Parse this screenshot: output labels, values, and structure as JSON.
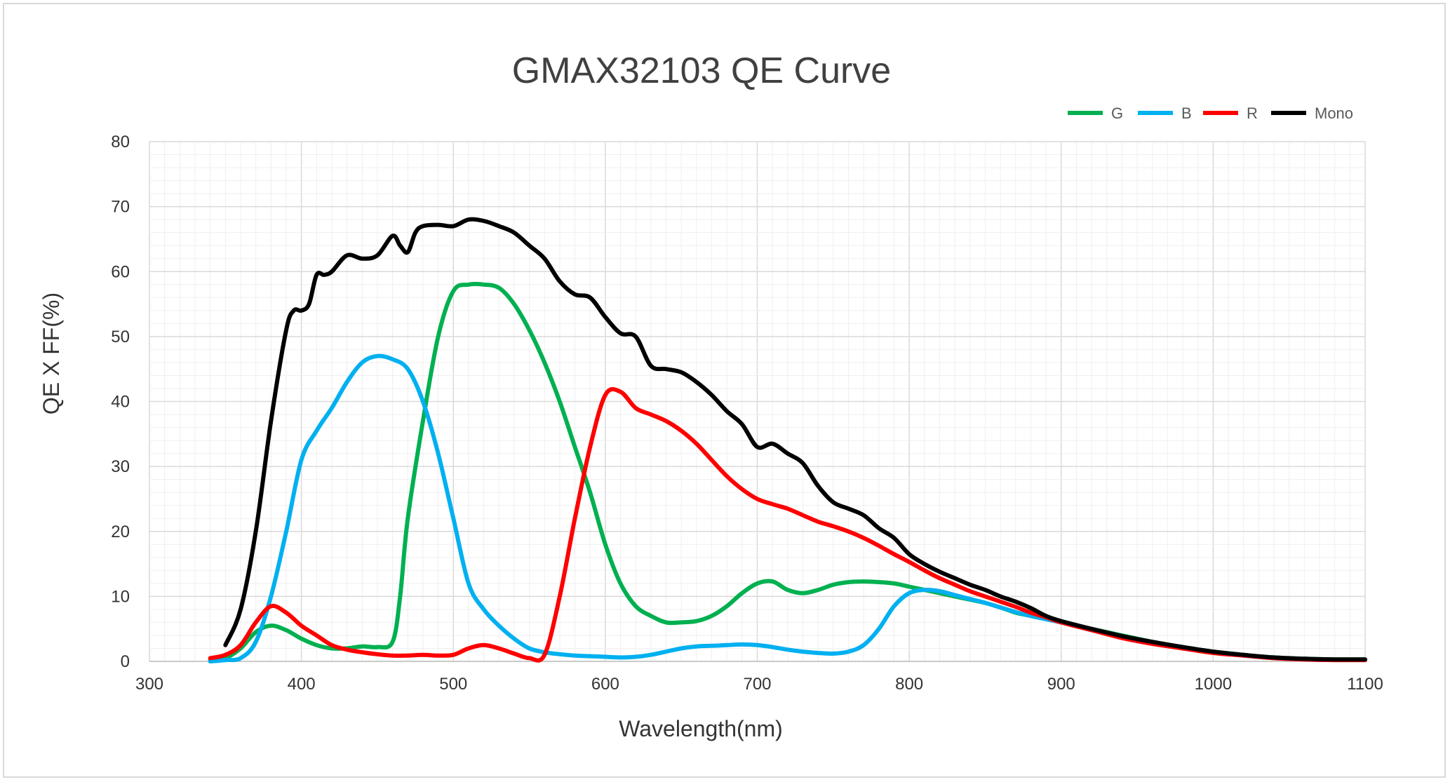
{
  "chart_data": {
    "type": "line",
    "title": "GMAX32103 QE  Curve",
    "xlabel": "Wavelength(nm)",
    "ylabel": "QE X FF(%)",
    "xlim": [
      300,
      1100
    ],
    "ylim": [
      0,
      80
    ],
    "x_ticks": [
      300,
      400,
      500,
      600,
      700,
      800,
      900,
      1000,
      1100
    ],
    "y_ticks": [
      0,
      10,
      20,
      30,
      40,
      50,
      60,
      70,
      80
    ],
    "grid": true,
    "legend_position": "top-right",
    "series": [
      {
        "name": "G",
        "color": "#00b050",
        "points": [
          [
            340,
            0.2
          ],
          [
            350,
            0.5
          ],
          [
            360,
            2
          ],
          [
            370,
            4.5
          ],
          [
            380,
            5.5
          ],
          [
            390,
            4.8
          ],
          [
            400,
            3.5
          ],
          [
            410,
            2.5
          ],
          [
            420,
            2
          ],
          [
            430,
            2
          ],
          [
            440,
            2.3
          ],
          [
            450,
            2.2
          ],
          [
            460,
            3
          ],
          [
            465,
            10
          ],
          [
            470,
            22
          ],
          [
            480,
            37
          ],
          [
            490,
            50
          ],
          [
            500,
            57
          ],
          [
            510,
            58
          ],
          [
            520,
            58
          ],
          [
            530,
            57.5
          ],
          [
            540,
            55
          ],
          [
            550,
            51
          ],
          [
            560,
            46
          ],
          [
            570,
            40
          ],
          [
            580,
            33
          ],
          [
            590,
            26
          ],
          [
            600,
            18
          ],
          [
            610,
            12
          ],
          [
            620,
            8.5
          ],
          [
            630,
            7
          ],
          [
            640,
            6
          ],
          [
            650,
            6
          ],
          [
            660,
            6.2
          ],
          [
            670,
            7
          ],
          [
            680,
            8.5
          ],
          [
            690,
            10.5
          ],
          [
            700,
            12
          ],
          [
            710,
            12.3
          ],
          [
            720,
            11
          ],
          [
            730,
            10.5
          ],
          [
            740,
            11
          ],
          [
            750,
            11.8
          ],
          [
            760,
            12.2
          ],
          [
            770,
            12.3
          ],
          [
            780,
            12.2
          ],
          [
            790,
            12
          ],
          [
            800,
            11.5
          ],
          [
            810,
            11
          ],
          [
            820,
            10.5
          ],
          [
            830,
            10
          ],
          [
            840,
            9.5
          ],
          [
            850,
            9
          ],
          [
            860,
            8.3
          ],
          [
            870,
            7.5
          ],
          [
            880,
            7
          ],
          [
            890,
            6.5
          ],
          [
            900,
            6
          ],
          [
            920,
            5
          ],
          [
            940,
            4
          ],
          [
            960,
            3
          ],
          [
            980,
            2.2
          ],
          [
            1000,
            1.5
          ],
          [
            1020,
            1
          ],
          [
            1040,
            0.6
          ],
          [
            1060,
            0.4
          ],
          [
            1080,
            0.3
          ],
          [
            1100,
            0.3
          ]
        ]
      },
      {
        "name": "B",
        "color": "#00b0f0",
        "points": [
          [
            340,
            0
          ],
          [
            350,
            0.2
          ],
          [
            360,
            0.5
          ],
          [
            370,
            3
          ],
          [
            380,
            10
          ],
          [
            390,
            20
          ],
          [
            400,
            31
          ],
          [
            410,
            35.5
          ],
          [
            420,
            39
          ],
          [
            430,
            43
          ],
          [
            440,
            46
          ],
          [
            450,
            47
          ],
          [
            460,
            46.5
          ],
          [
            470,
            45
          ],
          [
            480,
            40
          ],
          [
            490,
            32
          ],
          [
            500,
            22
          ],
          [
            510,
            12
          ],
          [
            520,
            8
          ],
          [
            530,
            5.5
          ],
          [
            540,
            3.5
          ],
          [
            550,
            2
          ],
          [
            560,
            1.4
          ],
          [
            570,
            1.1
          ],
          [
            580,
            0.9
          ],
          [
            590,
            0.8
          ],
          [
            600,
            0.7
          ],
          [
            610,
            0.6
          ],
          [
            620,
            0.7
          ],
          [
            630,
            1
          ],
          [
            640,
            1.5
          ],
          [
            650,
            2
          ],
          [
            660,
            2.3
          ],
          [
            670,
            2.4
          ],
          [
            680,
            2.5
          ],
          [
            690,
            2.6
          ],
          [
            700,
            2.5
          ],
          [
            710,
            2.2
          ],
          [
            720,
            1.8
          ],
          [
            730,
            1.5
          ],
          [
            740,
            1.3
          ],
          [
            750,
            1.2
          ],
          [
            760,
            1.5
          ],
          [
            770,
            2.5
          ],
          [
            780,
            5
          ],
          [
            790,
            8.5
          ],
          [
            800,
            10.5
          ],
          [
            810,
            11
          ],
          [
            820,
            10.8
          ],
          [
            830,
            10.2
          ],
          [
            840,
            9.6
          ],
          [
            850,
            9
          ],
          [
            860,
            8.3
          ],
          [
            870,
            7.6
          ],
          [
            880,
            7
          ],
          [
            890,
            6.5
          ],
          [
            900,
            6
          ],
          [
            920,
            4.8
          ],
          [
            940,
            3.8
          ],
          [
            960,
            2.8
          ],
          [
            980,
            2
          ],
          [
            1000,
            1.4
          ],
          [
            1020,
            0.9
          ],
          [
            1040,
            0.5
          ],
          [
            1060,
            0.3
          ],
          [
            1080,
            0.2
          ],
          [
            1100,
            0.2
          ]
        ]
      },
      {
        "name": "R",
        "color": "#ff0000",
        "points": [
          [
            340,
            0.5
          ],
          [
            350,
            1
          ],
          [
            360,
            2.5
          ],
          [
            370,
            6
          ],
          [
            380,
            8.5
          ],
          [
            390,
            7.5
          ],
          [
            400,
            5.5
          ],
          [
            410,
            4
          ],
          [
            420,
            2.5
          ],
          [
            430,
            1.8
          ],
          [
            440,
            1.4
          ],
          [
            450,
            1.1
          ],
          [
            460,
            0.9
          ],
          [
            470,
            0.9
          ],
          [
            480,
            1
          ],
          [
            490,
            0.9
          ],
          [
            500,
            1
          ],
          [
            510,
            2
          ],
          [
            520,
            2.5
          ],
          [
            530,
            2
          ],
          [
            540,
            1.2
          ],
          [
            550,
            0.5
          ],
          [
            560,
            1
          ],
          [
            570,
            10
          ],
          [
            580,
            22
          ],
          [
            590,
            33
          ],
          [
            600,
            41
          ],
          [
            610,
            41.5
          ],
          [
            620,
            39
          ],
          [
            630,
            38
          ],
          [
            640,
            37
          ],
          [
            650,
            35.5
          ],
          [
            660,
            33.5
          ],
          [
            670,
            31
          ],
          [
            680,
            28.5
          ],
          [
            690,
            26.5
          ],
          [
            700,
            25
          ],
          [
            710,
            24.2
          ],
          [
            720,
            23.5
          ],
          [
            730,
            22.5
          ],
          [
            740,
            21.5
          ],
          [
            750,
            20.8
          ],
          [
            760,
            20
          ],
          [
            770,
            19
          ],
          [
            780,
            17.8
          ],
          [
            790,
            16.5
          ],
          [
            800,
            15.3
          ],
          [
            810,
            14
          ],
          [
            820,
            12.8
          ],
          [
            830,
            11.8
          ],
          [
            840,
            10.8
          ],
          [
            850,
            10
          ],
          [
            860,
            9.2
          ],
          [
            870,
            8.4
          ],
          [
            880,
            7.5
          ],
          [
            890,
            6.8
          ],
          [
            900,
            6
          ],
          [
            920,
            4.8
          ],
          [
            940,
            3.6
          ],
          [
            960,
            2.7
          ],
          [
            980,
            2
          ],
          [
            1000,
            1.3
          ],
          [
            1020,
            0.9
          ],
          [
            1040,
            0.5
          ],
          [
            1060,
            0.3
          ],
          [
            1080,
            0.2
          ],
          [
            1100,
            0.2
          ]
        ]
      },
      {
        "name": "Mono",
        "color": "#000000",
        "points": [
          [
            350,
            2.5
          ],
          [
            360,
            8
          ],
          [
            370,
            20
          ],
          [
            380,
            37
          ],
          [
            390,
            51
          ],
          [
            395,
            54
          ],
          [
            400,
            54
          ],
          [
            405,
            55
          ],
          [
            410,
            59.5
          ],
          [
            415,
            59.5
          ],
          [
            420,
            60
          ],
          [
            430,
            62.5
          ],
          [
            440,
            62
          ],
          [
            450,
            62.5
          ],
          [
            460,
            65.5
          ],
          [
            465,
            64
          ],
          [
            470,
            63
          ],
          [
            475,
            66
          ],
          [
            480,
            67
          ],
          [
            490,
            67.2
          ],
          [
            500,
            67
          ],
          [
            510,
            68
          ],
          [
            520,
            67.8
          ],
          [
            530,
            67
          ],
          [
            540,
            66
          ],
          [
            550,
            64
          ],
          [
            560,
            62
          ],
          [
            570,
            58.5
          ],
          [
            580,
            56.5
          ],
          [
            590,
            56
          ],
          [
            600,
            53
          ],
          [
            610,
            50.5
          ],
          [
            620,
            50
          ],
          [
            630,
            45.5
          ],
          [
            640,
            45
          ],
          [
            650,
            44.5
          ],
          [
            660,
            43
          ],
          [
            670,
            41
          ],
          [
            680,
            38.5
          ],
          [
            690,
            36.5
          ],
          [
            700,
            33
          ],
          [
            710,
            33.5
          ],
          [
            720,
            32
          ],
          [
            730,
            30.5
          ],
          [
            740,
            27
          ],
          [
            750,
            24.5
          ],
          [
            760,
            23.5
          ],
          [
            770,
            22.5
          ],
          [
            780,
            20.5
          ],
          [
            790,
            19
          ],
          [
            800,
            16.5
          ],
          [
            810,
            15
          ],
          [
            820,
            13.8
          ],
          [
            830,
            12.8
          ],
          [
            840,
            11.8
          ],
          [
            850,
            11
          ],
          [
            860,
            10
          ],
          [
            870,
            9.2
          ],
          [
            880,
            8.2
          ],
          [
            890,
            7
          ],
          [
            900,
            6.2
          ],
          [
            920,
            5
          ],
          [
            940,
            3.9
          ],
          [
            960,
            3
          ],
          [
            980,
            2.2
          ],
          [
            1000,
            1.5
          ],
          [
            1020,
            1
          ],
          [
            1040,
            0.6
          ],
          [
            1060,
            0.4
          ],
          [
            1080,
            0.3
          ],
          [
            1100,
            0.3
          ]
        ]
      }
    ]
  }
}
